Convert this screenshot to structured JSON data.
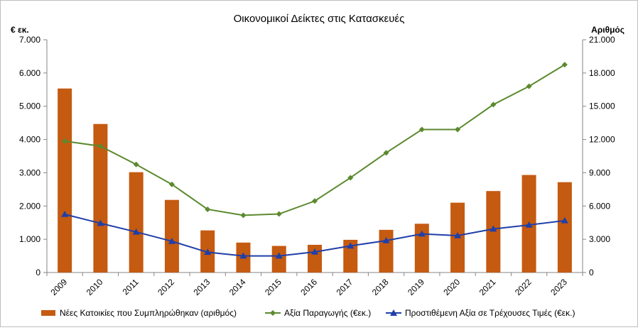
{
  "chart_data": {
    "type": "bar",
    "title": "Οικονομικοί  Δείκτες στις Κατασκευές",
    "ylabel_left": "€ εκ.",
    "ylabel_right": "Αριθμός",
    "categories": [
      "2009",
      "2010",
      "2011",
      "2012",
      "2013",
      "2014",
      "2015",
      "2016",
      "2017",
      "2018",
      "2019",
      "2020",
      "2021",
      "2022",
      "2023"
    ],
    "y_left": {
      "min": 0,
      "max": 7000,
      "step": 1000,
      "tick_labels": [
        "0",
        "1.000",
        "2.000",
        "3.000",
        "4.000",
        "5.000",
        "6.000",
        "7.000"
      ]
    },
    "y_right": {
      "min": 0,
      "max": 21000,
      "step": 3000,
      "tick_labels": [
        "0",
        "3.000",
        "6.000",
        "9.000",
        "12.000",
        "15.000",
        "18.000",
        "21.000"
      ]
    },
    "grid": false,
    "legend_position": "bottom",
    "series": [
      {
        "name": "Νέες Κατοικίες που Συμπληρώθηκαν (αριθμός)",
        "type": "bar",
        "axis": "right",
        "color": "#c55a11",
        "values": [
          16600,
          13400,
          9050,
          6550,
          3800,
          2700,
          2400,
          2500,
          2950,
          3850,
          4400,
          6300,
          7350,
          8800,
          8150
        ]
      },
      {
        "name": "Αξία Παραγωγής (€εκ.)",
        "type": "line",
        "marker": "diamond",
        "axis": "left",
        "color": "#5b8a2e",
        "values": [
          3950,
          3800,
          3250,
          2650,
          1900,
          1720,
          1760,
          2150,
          2850,
          3600,
          4300,
          4300,
          5050,
          5600,
          6250
        ]
      },
      {
        "name": "Προστιθέμενη Αξία σε Τρέχουσες Τιμές (€εκ.)",
        "type": "line",
        "marker": "triangle",
        "axis": "left",
        "color": "#1f3fa8",
        "values": [
          1750,
          1480,
          1220,
          940,
          610,
          500,
          500,
          620,
          800,
          960,
          1160,
          1110,
          1310,
          1430,
          1560
        ]
      }
    ]
  }
}
